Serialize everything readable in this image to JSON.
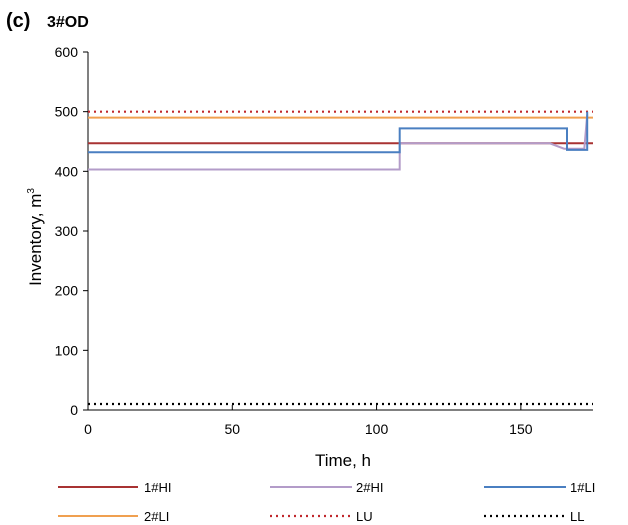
{
  "chart_data": {
    "type": "line",
    "panel_label": "(c)",
    "title": "3#OD",
    "xlabel": "Time, h",
    "ylabel_text": "Inventory, m",
    "ylabel_sup": "3",
    "xlim": [
      0,
      175
    ],
    "ylim": [
      0,
      600
    ],
    "xticks": [
      0,
      50,
      100,
      150
    ],
    "yticks": [
      0,
      100,
      200,
      300,
      400,
      500,
      600
    ],
    "grid": false,
    "legend_position": "bottom",
    "series": [
      {
        "name": "1#HI",
        "color": "#a83232",
        "style": "solid",
        "points": [
          [
            0,
            447
          ],
          [
            175,
            447
          ]
        ]
      },
      {
        "name": "2#HI",
        "color": "#b39cc9",
        "style": "solid",
        "points": [
          [
            0,
            403
          ],
          [
            108,
            403
          ],
          [
            108,
            447
          ],
          [
            160,
            447
          ],
          [
            165,
            438
          ],
          [
            172,
            438
          ],
          [
            173,
            495
          ]
        ]
      },
      {
        "name": "1#LI",
        "color": "#4a7fc1",
        "style": "solid",
        "points": [
          [
            0,
            432
          ],
          [
            108,
            432
          ],
          [
            108,
            472
          ],
          [
            166,
            472
          ],
          [
            166,
            436
          ],
          [
            173,
            436
          ],
          [
            173,
            500
          ]
        ]
      },
      {
        "name": "2#LI",
        "color": "#f0a050",
        "style": "solid",
        "points": [
          [
            0,
            490
          ],
          [
            175,
            490
          ]
        ]
      },
      {
        "name": "LU",
        "color": "#c0282d",
        "style": "dotted",
        "points": [
          [
            0,
            500
          ],
          [
            175,
            500
          ]
        ]
      },
      {
        "name": "LL",
        "color": "#000000",
        "style": "dotted",
        "points": [
          [
            0,
            10
          ],
          [
            175,
            10
          ]
        ]
      }
    ]
  }
}
